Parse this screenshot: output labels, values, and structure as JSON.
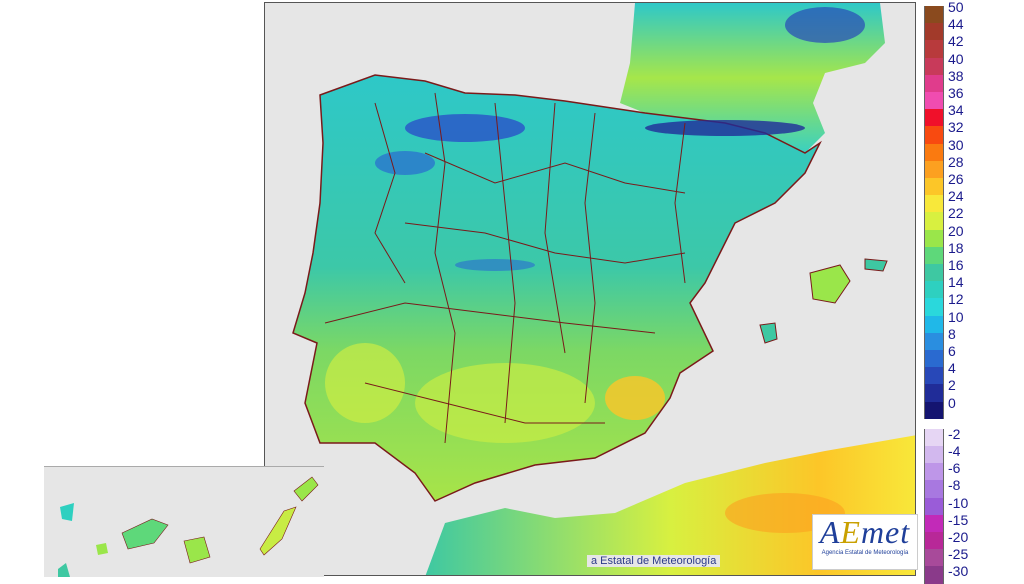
{
  "credit_text": "a Estatal de Meteorología",
  "logo": {
    "mark_a": "A",
    "mark_e": "E",
    "mark_rest": "met",
    "subtitle": "Agencia Estatal de Meteorología"
  },
  "legend": {
    "warm": [
      {
        "label": "50",
        "color": "#8a4a1e"
      },
      {
        "label": "44",
        "color": "#a23a2a"
      },
      {
        "label": "42",
        "color": "#b83a3c"
      },
      {
        "label": "40",
        "color": "#c83a5a"
      },
      {
        "label": "38",
        "color": "#e03c8c"
      },
      {
        "label": "36",
        "color": "#f04cb0"
      },
      {
        "label": "34",
        "color": "#f0102a"
      },
      {
        "label": "32",
        "color": "#f84a10"
      },
      {
        "label": "30",
        "color": "#fa7a10"
      },
      {
        "label": "28",
        "color": "#fca020"
      },
      {
        "label": "26",
        "color": "#fcc628"
      },
      {
        "label": "24",
        "color": "#f8e83a"
      },
      {
        "label": "22",
        "color": "#d8f040"
      },
      {
        "label": "20",
        "color": "#9ae64a"
      },
      {
        "label": "18",
        "color": "#5ed87a"
      },
      {
        "label": "16",
        "color": "#3ec8a2"
      },
      {
        "label": "14",
        "color": "#2ed0c0"
      },
      {
        "label": "12",
        "color": "#2ad8dc"
      },
      {
        "label": "10",
        "color": "#20b8e8"
      },
      {
        "label": "8",
        "color": "#2a8ee0"
      },
      {
        "label": "6",
        "color": "#2a6ad0"
      },
      {
        "label": "4",
        "color": "#2848b8"
      },
      {
        "label": "2",
        "color": "#202c98"
      },
      {
        "label": "0",
        "color": "#141470"
      }
    ],
    "cold": [
      {
        "label": "-2",
        "color": "#e6d6f4"
      },
      {
        "label": "-4",
        "color": "#d2b8ee"
      },
      {
        "label": "-6",
        "color": "#be96e8"
      },
      {
        "label": "-8",
        "color": "#a878e0"
      },
      {
        "label": "-10",
        "color": "#9a5cd8"
      },
      {
        "label": "-15",
        "color": "#c22ab8"
      },
      {
        "label": "-20",
        "color": "#b82898"
      },
      {
        "label": "-25",
        "color": "#a84a9a"
      },
      {
        "label": "-30",
        "color": "#8a3a8a"
      }
    ]
  }
}
